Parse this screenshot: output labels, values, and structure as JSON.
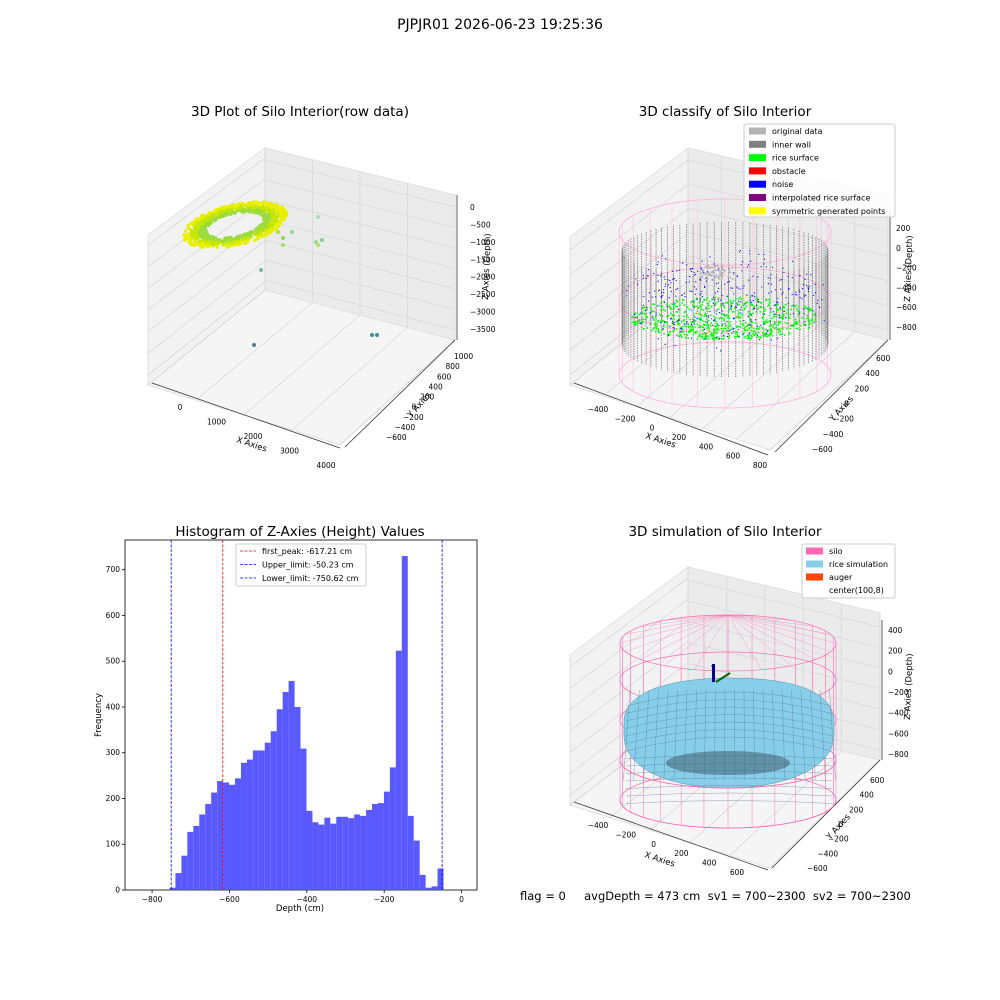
{
  "figure": {
    "title": "PJPJR01 2026-06-23 19:25:36",
    "stats_line": "flag = 0     avgDepth = 473 cm  sv1 = 700~2300  sv2 = 700~2300"
  },
  "colors": {
    "yellow_green": "#d4e600",
    "rice_surface": "#00ff00",
    "noise": "#0000ff",
    "inner_wall": "#808080",
    "original": "#b3b3b3",
    "silo": "#ff69b4",
    "rice_sim": "#87ceeb",
    "auger": "#ff4500",
    "hist_bar": "#5050ff",
    "hist_peak": "#ff0000",
    "hist_limit": "#0000ff"
  },
  "chart_data": [
    {
      "type": "scatter",
      "title": "3D Plot of Silo Interior(row data)",
      "xlabel": "X Axies",
      "ylabel": "Y Axies",
      "zlabel": "Z Axies (Depth)",
      "xticks": [
        "0",
        "1000",
        "2000",
        "3000",
        "4000"
      ],
      "yticks": [
        "−600",
        "−400",
        "−200",
        "0",
        "200",
        "400",
        "600",
        "800",
        "1000"
      ],
      "zticks": [
        "0",
        "−500",
        "−1000",
        "−1500",
        "−2000",
        "−2500",
        "−3000",
        "−3500"
      ]
    },
    {
      "type": "scatter",
      "title": "3D classify of Silo Interior",
      "xlabel": "X Axies",
      "ylabel": "Y Axies",
      "zlabel": "Z Axies (Depth)",
      "xticks": [
        "−400",
        "−200",
        "0",
        "200",
        "400",
        "600",
        "800"
      ],
      "yticks": [
        "−600",
        "−400",
        "−200",
        "0",
        "200",
        "400",
        "600"
      ],
      "zticks": [
        "200",
        "0",
        "−200",
        "−400",
        "−600",
        "−800"
      ],
      "legend": [
        {
          "name": "original data",
          "color": "#b3b3b3"
        },
        {
          "name": "inner wall",
          "color": "#808080"
        },
        {
          "name": "rice surface",
          "color": "#00ff00"
        },
        {
          "name": "obstacle",
          "color": "#ff0000"
        },
        {
          "name": "noise",
          "color": "#0000ff"
        },
        {
          "name": "interpolated rice surface",
          "color": "#800080"
        },
        {
          "name": "symmetric generated points",
          "color": "#ffff00"
        }
      ],
      "legend_position": "top-right"
    },
    {
      "type": "bar",
      "title": "Histogram of Z-Axies (Height) Values",
      "xlabel": "Depth (cm)",
      "ylabel": "Frequency",
      "xlim": [
        -870,
        40
      ],
      "ylim": [
        0,
        765
      ],
      "xticks": [
        -800,
        -600,
        -400,
        -200,
        0
      ],
      "yticks": [
        0,
        100,
        200,
        300,
        400,
        500,
        600,
        700
      ],
      "bin_width": 15.4,
      "bin_start": -755,
      "values": [
        5,
        37,
        75,
        127,
        140,
        165,
        188,
        213,
        238,
        235,
        230,
        244,
        278,
        285,
        305,
        305,
        322,
        347,
        395,
        433,
        457,
        400,
        309,
        173,
        148,
        143,
        158,
        145,
        160,
        160,
        157,
        165,
        162,
        175,
        188,
        190,
        215,
        268,
        523,
        730,
        162,
        108,
        33,
        5,
        8,
        47
      ],
      "lines": [
        {
          "name": "first_peak: -617.21 cm",
          "x": -617.21,
          "color": "#ff0000"
        },
        {
          "name": "Upper_limit: -50.23 cm",
          "x": -50.23,
          "color": "#0000ff"
        },
        {
          "name": "Lower_limit: -750.62 cm",
          "x": -750.62,
          "color": "#0000ff"
        }
      ],
      "legend_position": "top-center"
    },
    {
      "type": "scatter",
      "title": "3D simulation of Silo Interior",
      "xlabel": "X Axies",
      "ylabel": "Y Axies",
      "zlabel": "Z Axies (Depth)",
      "xticks": [
        "−400",
        "−200",
        "0",
        "200",
        "400",
        "600"
      ],
      "yticks": [
        "−600",
        "−400",
        "−200",
        "0",
        "200",
        "400",
        "600"
      ],
      "zticks": [
        "400",
        "200",
        "0",
        "−200",
        "−400",
        "−600",
        "−800"
      ],
      "legend": [
        {
          "name": "silo",
          "color": "#ff69b4"
        },
        {
          "name": "rice simulation",
          "color": "#87ceeb"
        },
        {
          "name": "auger",
          "color": "#ff4500"
        },
        {
          "name": "center(100,8)",
          "color": ""
        }
      ],
      "legend_position": "top-right"
    }
  ]
}
